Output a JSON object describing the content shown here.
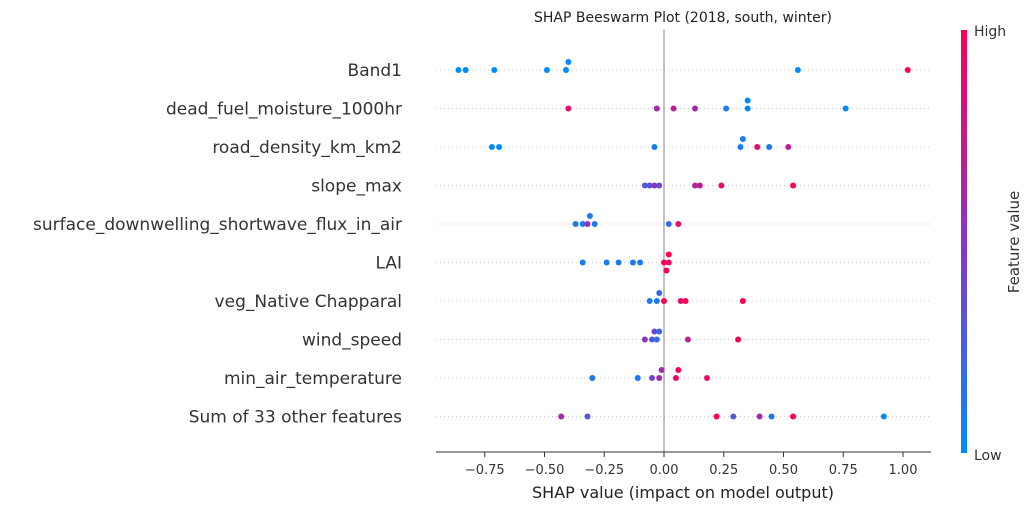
{
  "chart_data": {
    "type": "scatter",
    "subtype": "shap-beeswarm",
    "title": "SHAP Beeswarm Plot (2018, south, winter)",
    "xlabel": "SHAP value (impact on model output)",
    "xlim": [
      -0.95,
      1.12
    ],
    "xticks": [
      -0.75,
      -0.5,
      -0.25,
      0.0,
      0.25,
      0.5,
      0.75,
      1.0
    ],
    "xtick_labels": [
      "−0.75",
      "−0.50",
      "−0.25",
      "0.00",
      "0.25",
      "0.50",
      "0.75",
      "1.00"
    ],
    "colorbar": {
      "label": "Feature value",
      "high_label": "High",
      "low_label": "Low",
      "low_color": "#008bfb",
      "high_color": "#ff0052"
    },
    "features": [
      {
        "name": "Band1",
        "points": [
          {
            "x": -0.86,
            "v": 0.0
          },
          {
            "x": -0.83,
            "v": 0.0
          },
          {
            "x": -0.71,
            "v": 0.0
          },
          {
            "x": -0.49,
            "v": 0.0
          },
          {
            "x": -0.41,
            "v": 0.0
          },
          {
            "x": -0.4,
            "v": 0.0
          },
          {
            "x": 0.56,
            "v": 0.0
          },
          {
            "x": 1.02,
            "v": 1.0
          }
        ]
      },
      {
        "name": "dead_fuel_moisture_1000hr",
        "points": [
          {
            "x": -0.4,
            "v": 0.9
          },
          {
            "x": -0.03,
            "v": 0.6
          },
          {
            "x": 0.04,
            "v": 0.7
          },
          {
            "x": 0.13,
            "v": 0.6
          },
          {
            "x": 0.26,
            "v": 0.1
          },
          {
            "x": 0.35,
            "v": 0.0
          },
          {
            "x": 0.35,
            "v": 0.0
          },
          {
            "x": 0.76,
            "v": 0.0
          }
        ]
      },
      {
        "name": "road_density_km_km2",
        "points": [
          {
            "x": -0.72,
            "v": 0.0
          },
          {
            "x": -0.69,
            "v": 0.0
          },
          {
            "x": -0.04,
            "v": 0.1
          },
          {
            "x": 0.32,
            "v": 0.1
          },
          {
            "x": 0.33,
            "v": 0.1
          },
          {
            "x": 0.39,
            "v": 0.9
          },
          {
            "x": 0.44,
            "v": 0.1
          },
          {
            "x": 0.52,
            "v": 0.7
          }
        ]
      },
      {
        "name": "slope_max",
        "points": [
          {
            "x": -0.08,
            "v": 0.3
          },
          {
            "x": -0.06,
            "v": 0.3
          },
          {
            "x": -0.04,
            "v": 0.5
          },
          {
            "x": -0.02,
            "v": 0.4
          },
          {
            "x": 0.13,
            "v": 0.7
          },
          {
            "x": 0.15,
            "v": 0.7
          },
          {
            "x": 0.24,
            "v": 0.9
          },
          {
            "x": 0.54,
            "v": 1.0
          }
        ]
      },
      {
        "name": "surface_downwelling_shortwave_flux_in_air",
        "points": [
          {
            "x": -0.37,
            "v": 0.1
          },
          {
            "x": -0.34,
            "v": 0.1
          },
          {
            "x": -0.32,
            "v": 0.6
          },
          {
            "x": -0.31,
            "v": 0.1
          },
          {
            "x": -0.29,
            "v": 0.1
          },
          {
            "x": 0.02,
            "v": 0.2
          },
          {
            "x": 0.06,
            "v": 0.9
          }
        ]
      },
      {
        "name": "LAI",
        "points": [
          {
            "x": -0.34,
            "v": 0.1
          },
          {
            "x": -0.24,
            "v": 0.1
          },
          {
            "x": -0.19,
            "v": 0.1
          },
          {
            "x": -0.13,
            "v": 0.1
          },
          {
            "x": -0.1,
            "v": 0.1
          },
          {
            "x": 0.0,
            "v": 1.0
          },
          {
            "x": 0.02,
            "v": 0.9
          },
          {
            "x": 0.02,
            "v": 1.0
          },
          {
            "x": 0.01,
            "v": 1.0
          }
        ]
      },
      {
        "name": "veg_Native Chapparal",
        "points": [
          {
            "x": -0.06,
            "v": 0.1
          },
          {
            "x": -0.03,
            "v": 0.1
          },
          {
            "x": -0.02,
            "v": 0.2
          },
          {
            "x": 0.0,
            "v": 1.0
          },
          {
            "x": 0.07,
            "v": 0.9
          },
          {
            "x": 0.09,
            "v": 1.0
          },
          {
            "x": 0.33,
            "v": 1.0
          }
        ]
      },
      {
        "name": "wind_speed",
        "points": [
          {
            "x": -0.08,
            "v": 0.5
          },
          {
            "x": -0.05,
            "v": 0.3
          },
          {
            "x": -0.04,
            "v": 0.4
          },
          {
            "x": -0.03,
            "v": 0.2
          },
          {
            "x": -0.02,
            "v": 0.2
          },
          {
            "x": 0.1,
            "v": 0.7
          },
          {
            "x": 0.31,
            "v": 1.0
          }
        ]
      },
      {
        "name": "min_air_temperature",
        "points": [
          {
            "x": -0.3,
            "v": 0.1
          },
          {
            "x": -0.11,
            "v": 0.1
          },
          {
            "x": -0.05,
            "v": 0.4
          },
          {
            "x": -0.02,
            "v": 0.6
          },
          {
            "x": -0.01,
            "v": 0.6
          },
          {
            "x": 0.05,
            "v": 0.9
          },
          {
            "x": 0.06,
            "v": 1.0
          },
          {
            "x": 0.18,
            "v": 0.9
          }
        ]
      },
      {
        "name": "Sum of 33 other features",
        "points": [
          {
            "x": -0.43,
            "v": 0.6
          },
          {
            "x": -0.32,
            "v": 0.3
          },
          {
            "x": 0.22,
            "v": 1.0
          },
          {
            "x": 0.29,
            "v": 0.3
          },
          {
            "x": 0.4,
            "v": 0.6
          },
          {
            "x": 0.45,
            "v": 0.1
          },
          {
            "x": 0.54,
            "v": 1.0
          },
          {
            "x": 0.92,
            "v": 0.0
          }
        ]
      }
    ]
  }
}
